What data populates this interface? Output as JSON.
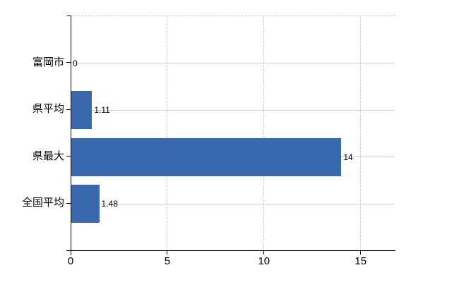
{
  "chart_data": {
    "type": "bar",
    "orientation": "horizontal",
    "title": "",
    "xlabel": "",
    "ylabel": "",
    "categories": [
      "富岡市",
      "県平均",
      "県最大",
      "全国平均"
    ],
    "values": [
      0,
      1.11,
      14,
      1.48
    ],
    "value_labels": [
      "0",
      "1.11",
      "14",
      "1.48"
    ],
    "xticks": [
      "0",
      "5",
      "10",
      "15"
    ],
    "xtick_values": [
      0,
      5,
      10,
      15
    ],
    "xlim": [
      0,
      16.8
    ],
    "grid": "on",
    "legend": "none",
    "colors": {
      "bar": "#3a68ae",
      "axis": "#000000",
      "h_gridline": "#ccd2cc",
      "v_gridline": "#cbcfcc",
      "top_border": "#c9cdca",
      "text": "#000000",
      "background": "#ffffff"
    }
  }
}
